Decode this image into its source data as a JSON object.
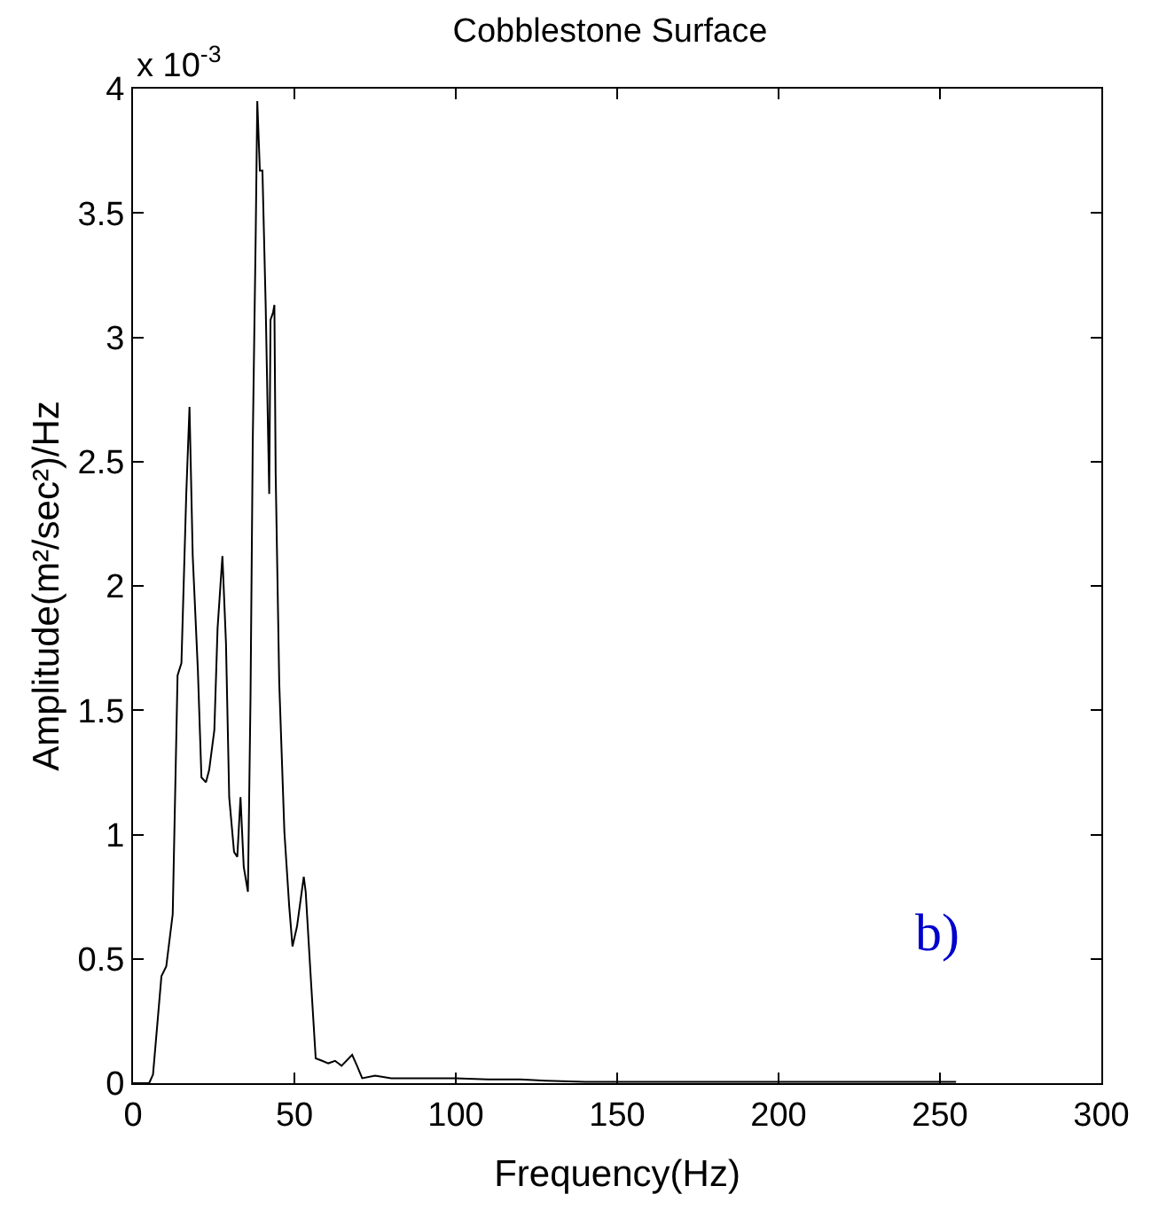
{
  "chart_data": {
    "type": "line",
    "title": "Cobblestone Surface",
    "xlabel": "Frequency(Hz)",
    "ylabel": "Amplitude(m²/sec²)/Hz",
    "annotations": [
      "x 10$^{-3}$",
      "b)"
    ],
    "series": [
      {
        "color": "#000000",
        "x": [
          0,
          5,
          6.2,
          8.8,
          10.3,
          12.3,
          13.8,
          15,
          16.5,
          17.5,
          18.5,
          20.1,
          21.2,
          22.6,
          23.6,
          25.2,
          26.2,
          27.7,
          28.8,
          29.8,
          31.3,
          32.3,
          33.3,
          34.3,
          35.6,
          36.4,
          37.1,
          38.0,
          38.5,
          39.3,
          40.1,
          41.1,
          42.2,
          42.6,
          43.4,
          43.8,
          44.2,
          45.3,
          46.9,
          48.4,
          49.4,
          50.8,
          52.9,
          53.5,
          55.0,
          56.6,
          58.6,
          60.5,
          62.6,
          64.6,
          67.9,
          69.4,
          71,
          75,
          80,
          90,
          100,
          110,
          120,
          128,
          140,
          160,
          200,
          255
        ],
        "values": [
          0,
          0,
          0.035,
          0.43,
          0.47,
          0.68,
          1.64,
          1.69,
          2.37,
          2.72,
          2.12,
          1.66,
          1.23,
          1.21,
          1.26,
          1.42,
          1.83,
          2.12,
          1.77,
          1.15,
          0.93,
          0.91,
          1.15,
          0.87,
          0.77,
          1.55,
          2.58,
          3.4,
          3.95,
          3.67,
          3.67,
          3.13,
          2.37,
          3.07,
          3.1,
          3.13,
          2.45,
          1.61,
          1.01,
          0.71,
          0.55,
          0.63,
          0.83,
          0.77,
          0.44,
          0.1,
          0.09,
          0.08,
          0.09,
          0.07,
          0.114,
          0.07,
          0.02,
          0.03,
          0.02,
          0.02,
          0.02,
          0.015,
          0.015,
          0.01,
          0.005,
          0.005,
          0.005,
          0.005
        ]
      }
    ],
    "xlim": [
      0,
      300
    ],
    "xticks": [
      0,
      50,
      100,
      150,
      200,
      250,
      300
    ],
    "ylim": [
      0,
      4
    ],
    "yticks": [
      0,
      0.5,
      1,
      1.5,
      2,
      2.5,
      3,
      3.5,
      4
    ]
  }
}
